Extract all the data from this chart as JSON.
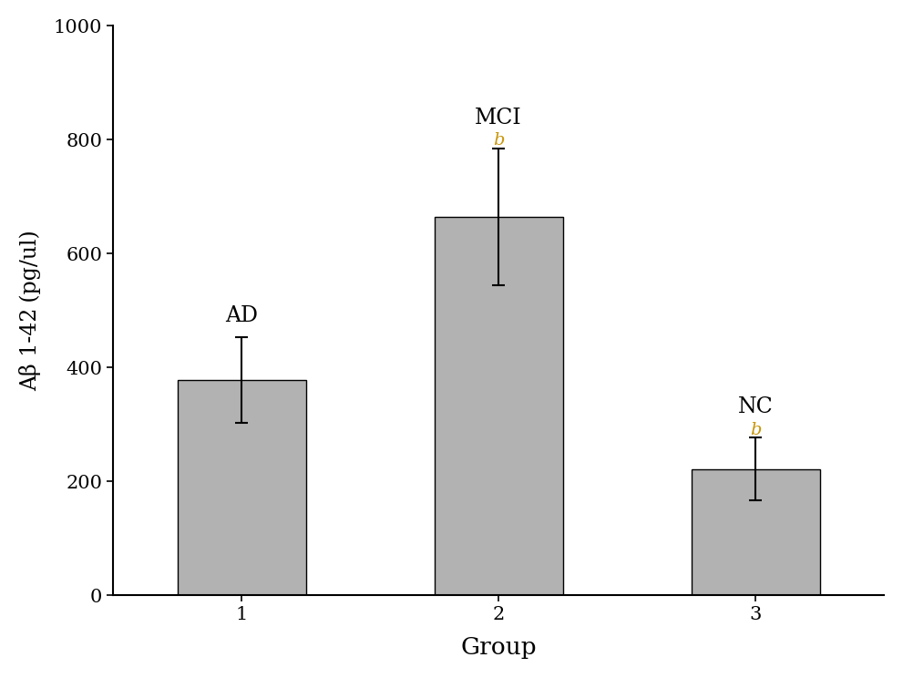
{
  "categories": [
    "1",
    "2",
    "3"
  ],
  "values": [
    378,
    665,
    222
  ],
  "errors": [
    75,
    120,
    55
  ],
  "bar_labels": [
    "AD",
    "MCI",
    "NC"
  ],
  "bar_annotations": [
    null,
    "b",
    "b"
  ],
  "bar_color": "#b2b2b2",
  "bar_edgecolor": "#000000",
  "ylabel": "Aβ 1-42（pg/ul）",
  "xlabel": "Group",
  "ylim": [
    0,
    1000
  ],
  "yticks": [
    0,
    200,
    400,
    600,
    800,
    1000
  ],
  "annotation_color": "#c8960a",
  "tick_color": "#c8960a",
  "label_fontsize": 17,
  "tick_fontsize": 15,
  "annotation_fontsize": 14,
  "bar_label_fontsize": 17,
  "bar_width": 0.5,
  "background_color": "#ffffff",
  "figure_bg": "#ffffff"
}
